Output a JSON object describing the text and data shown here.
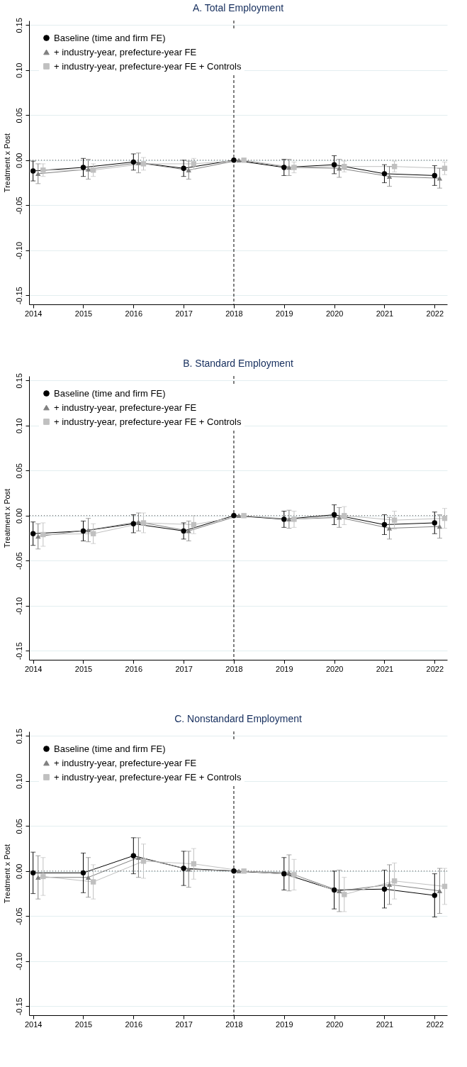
{
  "chart_data": [
    {
      "type": "line",
      "title": "A. Total Employment",
      "ylabel": "Treatment x Post",
      "xlim": [
        2013.92,
        2022.25
      ],
      "xticks": [
        2014,
        2015,
        2016,
        2017,
        2018,
        2019,
        2020,
        2021,
        2022
      ],
      "ylim": [
        -0.16,
        0.155
      ],
      "yticks": [
        {
          "value": -0.15,
          "label": "-0.15"
        },
        {
          "value": -0.1,
          "label": "-0.10"
        },
        {
          "value": -0.05,
          "label": "-0.05"
        },
        {
          "value": 0,
          "label": "0.00"
        },
        {
          "value": 0.05,
          "label": "0.05"
        },
        {
          "value": 0.1,
          "label": "0.10"
        },
        {
          "value": 0.15,
          "label": "0.15"
        }
      ],
      "grid": "y",
      "legend": "top left",
      "ref_lines": [
        {
          "axis": "y",
          "value": 0,
          "line_style": "dotted"
        },
        {
          "axis": "x",
          "value": 2018,
          "line_style": "dashed"
        }
      ],
      "series": [
        {
          "name": "Baseline (time and firm FE)",
          "color": "#000000",
          "marker": "circle",
          "x": [
            2014,
            2015,
            2016,
            2017,
            2018,
            2019,
            2020,
            2021,
            2022
          ],
          "values": [
            -0.012,
            -0.008,
            -0.002,
            -0.009,
            0,
            -0.008,
            -0.005,
            -0.015,
            -0.017
          ],
          "errors": [
            0.011,
            0.01,
            0.009,
            0.009,
            null,
            0.009,
            0.01,
            0.01,
            0.011
          ]
        },
        {
          "name": "+ industry-year, prefecture-year FE",
          "color": "#808080",
          "marker": "triangle",
          "x": [
            2014.1,
            2015.1,
            2016.1,
            2017.1,
            2018.1,
            2019.1,
            2020.1,
            2021.1,
            2022.1
          ],
          "values": [
            -0.015,
            -0.01,
            -0.003,
            -0.011,
            0,
            -0.008,
            -0.009,
            -0.018,
            -0.02
          ],
          "errors": [
            0.011,
            0.011,
            0.011,
            0.01,
            null,
            0.009,
            0.01,
            0.011,
            0.011
          ]
        },
        {
          "name": "+ industry-year, prefecture-year FE + Controls",
          "color": "#c0c0c0",
          "marker": "square",
          "x": [
            2014.2,
            2015.2,
            2016.2,
            2017.2,
            2018.2,
            2019.2,
            2020.2,
            2021.2,
            2022.2
          ],
          "values": [
            -0.011,
            -0.011,
            -0.004,
            -0.004,
            0,
            -0.008,
            -0.007,
            -0.007,
            -0.009
          ],
          "errors": [
            0.007,
            0.007,
            0.007,
            0.006,
            null,
            0.006,
            0.006,
            0.006,
            0.007
          ]
        }
      ]
    },
    {
      "type": "line",
      "title": "B. Standard Employment",
      "ylabel": "Treatment x Post",
      "xlim": [
        2013.92,
        2022.25
      ],
      "xticks": [
        2014,
        2015,
        2016,
        2017,
        2018,
        2019,
        2020,
        2021,
        2022
      ],
      "ylim": [
        -0.16,
        0.155
      ],
      "yticks": [
        {
          "value": -0.15,
          "label": "-0.15"
        },
        {
          "value": -0.1,
          "label": "-0.10"
        },
        {
          "value": -0.05,
          "label": "-0.05"
        },
        {
          "value": 0,
          "label": "0.00"
        },
        {
          "value": 0.05,
          "label": "0.05"
        },
        {
          "value": 0.1,
          "label": "0.10"
        },
        {
          "value": 0.15,
          "label": "0.15"
        }
      ],
      "grid": "y",
      "legend": "top left",
      "ref_lines": [
        {
          "axis": "y",
          "value": 0,
          "line_style": "dotted"
        },
        {
          "axis": "x",
          "value": 2018,
          "line_style": "dashed"
        }
      ],
      "series": [
        {
          "name": "Baseline (time and firm FE)",
          "color": "#000000",
          "marker": "circle",
          "x": [
            2014,
            2015,
            2016,
            2017,
            2018,
            2019,
            2020,
            2021,
            2022
          ],
          "values": [
            -0.02,
            -0.017,
            -0.009,
            -0.017,
            0,
            -0.004,
            0.001,
            -0.01,
            -0.008
          ],
          "errors": [
            0.013,
            0.011,
            0.01,
            0.009,
            null,
            0.009,
            0.011,
            0.011,
            0.012
          ]
        },
        {
          "name": "+ industry-year, prefecture-year FE",
          "color": "#808080",
          "marker": "triangle",
          "x": [
            2014.1,
            2015.1,
            2016.1,
            2017.1,
            2018.1,
            2019.1,
            2020.1,
            2021.1,
            2022.1
          ],
          "values": [
            -0.023,
            -0.016,
            -0.007,
            -0.017,
            0,
            -0.004,
            -0.002,
            -0.014,
            -0.012
          ],
          "errors": [
            0.014,
            0.013,
            0.01,
            0.011,
            null,
            0.01,
            0.011,
            0.012,
            0.013
          ]
        },
        {
          "name": "+ industry-year, prefecture-year FE + Controls",
          "color": "#c0c0c0",
          "marker": "square",
          "x": [
            2014.2,
            2015.2,
            2016.2,
            2017.2,
            2018.2,
            2019.2,
            2020.2,
            2021.2,
            2022.2
          ],
          "values": [
            -0.021,
            -0.02,
            -0.008,
            -0.01,
            0,
            -0.004,
            0.0,
            -0.005,
            -0.003
          ],
          "errors": [
            0.013,
            0.011,
            0.011,
            0.01,
            null,
            0.009,
            0.01,
            0.01,
            0.011
          ]
        }
      ]
    },
    {
      "type": "line",
      "title": "C. Nonstandard Employment",
      "ylabel": "Treatment x Post",
      "xlim": [
        2013.92,
        2022.25
      ],
      "xticks": [
        2014,
        2015,
        2016,
        2017,
        2018,
        2019,
        2020,
        2021,
        2022
      ],
      "ylim": [
        -0.16,
        0.155
      ],
      "yticks": [
        {
          "value": -0.15,
          "label": "-0.15"
        },
        {
          "value": -0.1,
          "label": "-0.10"
        },
        {
          "value": -0.05,
          "label": "-0.05"
        },
        {
          "value": 0,
          "label": "0.00"
        },
        {
          "value": 0.05,
          "label": "0.05"
        },
        {
          "value": 0.1,
          "label": "0.10"
        },
        {
          "value": 0.15,
          "label": "0.15"
        }
      ],
      "grid": "y",
      "legend": "top left",
      "ref_lines": [
        {
          "axis": "y",
          "value": 0,
          "line_style": "dotted"
        },
        {
          "axis": "x",
          "value": 2018,
          "line_style": "dashed"
        }
      ],
      "series": [
        {
          "name": "Baseline (time and firm FE)",
          "color": "#000000",
          "marker": "circle",
          "x": [
            2014,
            2015,
            2016,
            2017,
            2018,
            2019,
            2020,
            2021,
            2022
          ],
          "values": [
            -0.002,
            -0.002,
            0.017,
            0.003,
            0,
            -0.003,
            -0.021,
            -0.02,
            -0.027
          ],
          "errors": [
            0.023,
            0.022,
            0.02,
            0.019,
            null,
            0.018,
            0.021,
            0.021,
            0.024
          ]
        },
        {
          "name": "+ industry-year, prefecture-year FE",
          "color": "#808080",
          "marker": "triangle",
          "x": [
            2014.1,
            2015.1,
            2016.1,
            2017.1,
            2018.1,
            2019.1,
            2020.1,
            2021.1,
            2022.1
          ],
          "values": [
            -0.007,
            -0.007,
            0.015,
            0.002,
            0,
            -0.002,
            -0.022,
            -0.015,
            -0.022
          ],
          "errors": [
            0.024,
            0.022,
            0.022,
            0.02,
            null,
            0.02,
            0.023,
            0.022,
            0.025
          ]
        },
        {
          "name": "+ industry-year, prefecture-year FE + Controls",
          "color": "#c0c0c0",
          "marker": "square",
          "x": [
            2014.2,
            2015.2,
            2016.2,
            2017.2,
            2018.2,
            2019.2,
            2020.2,
            2021.2,
            2022.2
          ],
          "values": [
            -0.006,
            -0.012,
            0.011,
            0.008,
            0,
            -0.004,
            -0.026,
            -0.011,
            -0.017
          ],
          "errors": [
            0.021,
            0.019,
            0.019,
            0.017,
            null,
            0.017,
            0.019,
            0.02,
            0.02
          ]
        }
      ]
    }
  ]
}
